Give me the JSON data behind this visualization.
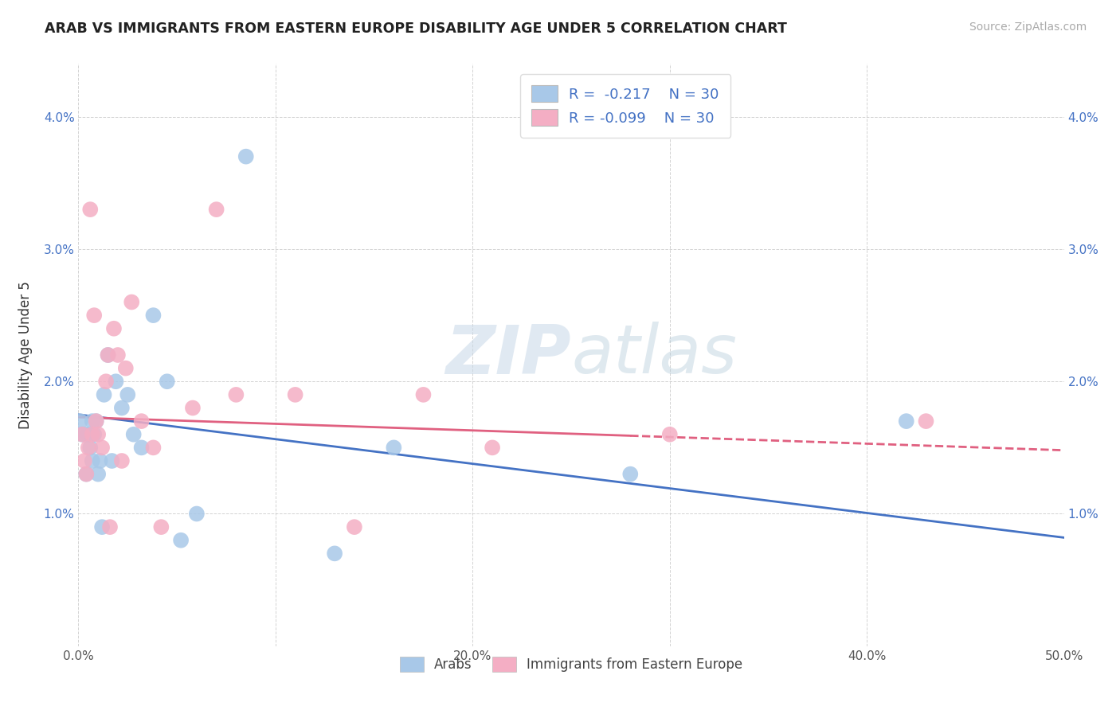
{
  "title": "ARAB VS IMMIGRANTS FROM EASTERN EUROPE DISABILITY AGE UNDER 5 CORRELATION CHART",
  "source": "Source: ZipAtlas.com",
  "ylabel": "Disability Age Under 5",
  "xlim": [
    0,
    0.5
  ],
  "ylim": [
    0,
    0.044
  ],
  "xticks": [
    0.0,
    0.1,
    0.2,
    0.3,
    0.4,
    0.5
  ],
  "xticklabels": [
    "0.0%",
    "",
    "20.0%",
    "",
    "40.0%",
    "50.0%"
  ],
  "yticks": [
    0.0,
    0.01,
    0.02,
    0.03,
    0.04
  ],
  "yticklabels": [
    "",
    "1.0%",
    "2.0%",
    "3.0%",
    "4.0%"
  ],
  "arab_color": "#a8c8e8",
  "eastern_color": "#f4aec4",
  "arab_line_color": "#4472c4",
  "eastern_line_color": "#e06080",
  "watermark_zip": "ZIP",
  "watermark_atlas": "atlas",
  "arab_x": [
    0.001,
    0.002,
    0.003,
    0.004,
    0.005,
    0.006,
    0.007,
    0.007,
    0.008,
    0.009,
    0.01,
    0.011,
    0.012,
    0.013,
    0.015,
    0.017,
    0.019,
    0.022,
    0.025,
    0.028,
    0.032,
    0.038,
    0.045,
    0.052,
    0.06,
    0.085,
    0.13,
    0.16,
    0.28,
    0.42
  ],
  "arab_y": [
    0.017,
    0.016,
    0.016,
    0.013,
    0.016,
    0.015,
    0.014,
    0.017,
    0.016,
    0.017,
    0.013,
    0.014,
    0.009,
    0.019,
    0.022,
    0.014,
    0.02,
    0.018,
    0.019,
    0.016,
    0.015,
    0.025,
    0.02,
    0.008,
    0.01,
    0.037,
    0.007,
    0.015,
    0.013,
    0.017
  ],
  "eastern_x": [
    0.002,
    0.003,
    0.004,
    0.005,
    0.006,
    0.007,
    0.008,
    0.009,
    0.01,
    0.012,
    0.014,
    0.015,
    0.016,
    0.018,
    0.02,
    0.022,
    0.024,
    0.027,
    0.032,
    0.038,
    0.042,
    0.058,
    0.07,
    0.08,
    0.11,
    0.14,
    0.175,
    0.21,
    0.3,
    0.43
  ],
  "eastern_y": [
    0.016,
    0.014,
    0.013,
    0.015,
    0.033,
    0.016,
    0.025,
    0.017,
    0.016,
    0.015,
    0.02,
    0.022,
    0.009,
    0.024,
    0.022,
    0.014,
    0.021,
    0.026,
    0.017,
    0.015,
    0.009,
    0.018,
    0.033,
    0.019,
    0.019,
    0.009,
    0.019,
    0.015,
    0.016,
    0.017
  ],
  "arab_line_x0": 0.0,
  "arab_line_y0": 0.0175,
  "arab_line_x1": 0.5,
  "arab_line_y1": 0.0082,
  "east_line_x0": 0.0,
  "east_line_y0": 0.0173,
  "east_line_x1": 0.5,
  "east_line_y1": 0.0148
}
